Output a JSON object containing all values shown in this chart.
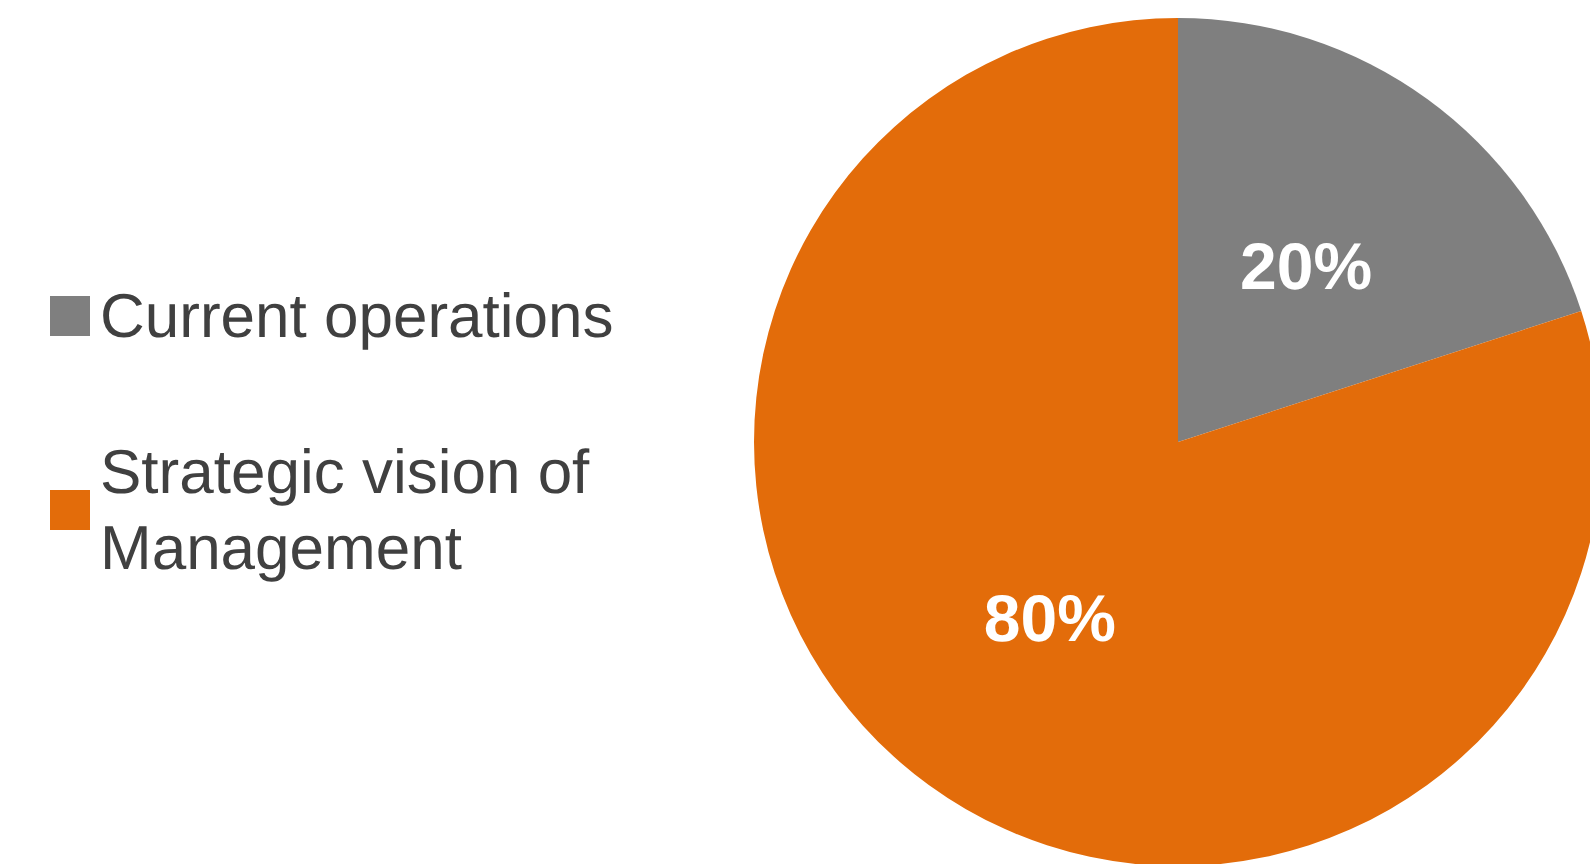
{
  "chart_data": {
    "type": "pie",
    "categories": [
      "Current operations",
      "Strategic vision of Management"
    ],
    "values": [
      20,
      80
    ],
    "colors": [
      "#7f7f7f",
      "#e36c0a"
    ],
    "value_labels": [
      "20%",
      "80%"
    ],
    "legend": "left"
  }
}
